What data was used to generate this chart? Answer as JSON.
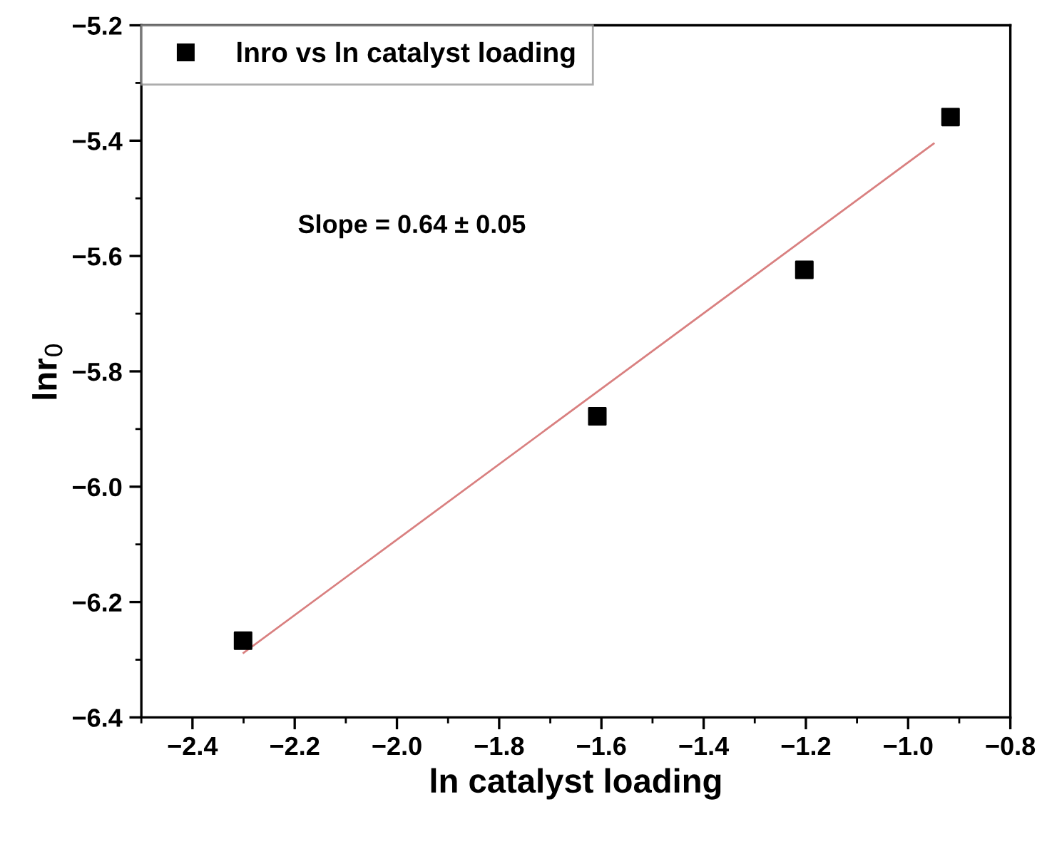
{
  "chart_data": {
    "type": "scatter",
    "xlabel": "ln catalyst loading",
    "ylabel": "lnr$_{0}$",
    "series": [
      {
        "name": "lnro vs ln catalyst loading",
        "color": "#000000",
        "marker": "square",
        "x": [
          -2.301,
          -1.608,
          -1.203,
          -0.917
        ],
        "values": [
          -6.267,
          -5.878,
          -5.624,
          -5.359
        ]
      },
      {
        "type": "line",
        "color": "#d98080",
        "line_style": "solid",
        "marker": "none",
        "x": [
          -2.3,
          -0.95
        ],
        "values": [
          -6.288,
          -5.405
        ]
      }
    ],
    "xlim": [
      -2.5,
      -0.8
    ],
    "ylim": [
      -6.4,
      -5.2
    ],
    "xticks": [
      {
        "value": -2.5,
        "label": null
      },
      -2.4,
      {
        "value": -2.3,
        "label": null
      },
      -2.2,
      {
        "value": -2.1,
        "label": null
      },
      {
        "value": -2.0,
        "label": "−2.0"
      },
      {
        "value": -1.9,
        "label": null
      },
      -1.8,
      {
        "value": -1.7,
        "label": null
      },
      -1.6,
      {
        "value": -1.5,
        "label": null
      },
      -1.4,
      {
        "value": -1.3,
        "label": null
      },
      -1.2,
      {
        "value": -1.1,
        "label": null
      },
      {
        "value": -1.0,
        "label": "−1.0"
      },
      {
        "value": -0.9,
        "label": null
      },
      -0.8
    ],
    "yticks": [
      -6.4,
      {
        "value": -6.3,
        "label": null
      },
      -6.2,
      {
        "value": -6.1,
        "label": null
      },
      {
        "value": -6.0,
        "label": "−6.0"
      },
      {
        "value": -5.9,
        "label": null
      },
      -5.8,
      {
        "value": -5.7,
        "label": null
      },
      -5.6,
      {
        "value": -5.5,
        "label": null
      },
      -5.4,
      {
        "value": -5.3,
        "label": null
      },
      -5.2
    ],
    "annotations": [
      "Slope = 0.64 ± 0.05"
    ],
    "legend": "top left",
    "grid": false
  }
}
